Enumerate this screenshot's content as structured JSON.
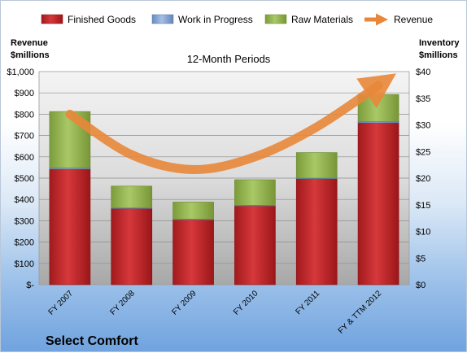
{
  "chart_data": {
    "type": "bar",
    "stacked": true,
    "title": "12-Month Periods",
    "company": "Select Comfort",
    "categories": [
      "FY 2007",
      "FY 2008",
      "FY 2009",
      "FY 2010",
      "FY 2011",
      "FY & TTM 2012"
    ],
    "left_axis": {
      "label_line1": "Revenue",
      "label_line2": "$millions",
      "range": [
        0,
        1000
      ],
      "ticks": [
        0,
        100,
        200,
        300,
        400,
        500,
        600,
        700,
        800,
        900,
        1000
      ],
      "tick_labels": [
        "$-",
        "$100",
        "$200",
        "$300",
        "$400",
        "$500",
        "$600",
        "$700",
        "$800",
        "$900",
        "$1,000"
      ]
    },
    "right_axis": {
      "label_line1": "Inventory",
      "label_line2": "$millions",
      "range": [
        0,
        40
      ],
      "ticks": [
        0,
        5,
        10,
        15,
        20,
        25,
        30,
        35,
        40
      ],
      "tick_labels": [
        "$0",
        "$5",
        "$10",
        "$15",
        "$20",
        "$25",
        "$30",
        "$35",
        "$40"
      ]
    },
    "series": [
      {
        "name": "Finished Goods",
        "axis": "right",
        "color": "#c0282b",
        "values": [
          21.7,
          14.3,
          12.2,
          14.8,
          19.9,
          30.4
        ]
      },
      {
        "name": "Work in Progress",
        "axis": "right",
        "color": "#7f9fcf",
        "values": [
          0.2,
          0.1,
          0.1,
          0.1,
          0.1,
          0.2
        ]
      },
      {
        "name": "Raw Materials",
        "axis": "right",
        "color": "#98b954",
        "values": [
          10.6,
          4.1,
          3.2,
          4.8,
          4.8,
          5.1
        ]
      },
      {
        "name": "Revenue",
        "axis": "left",
        "type": "line",
        "color": "#e8873a",
        "values": [
          800,
          610,
          540,
          600,
          740,
          935
        ]
      }
    ],
    "grid": true,
    "legend": "top"
  }
}
